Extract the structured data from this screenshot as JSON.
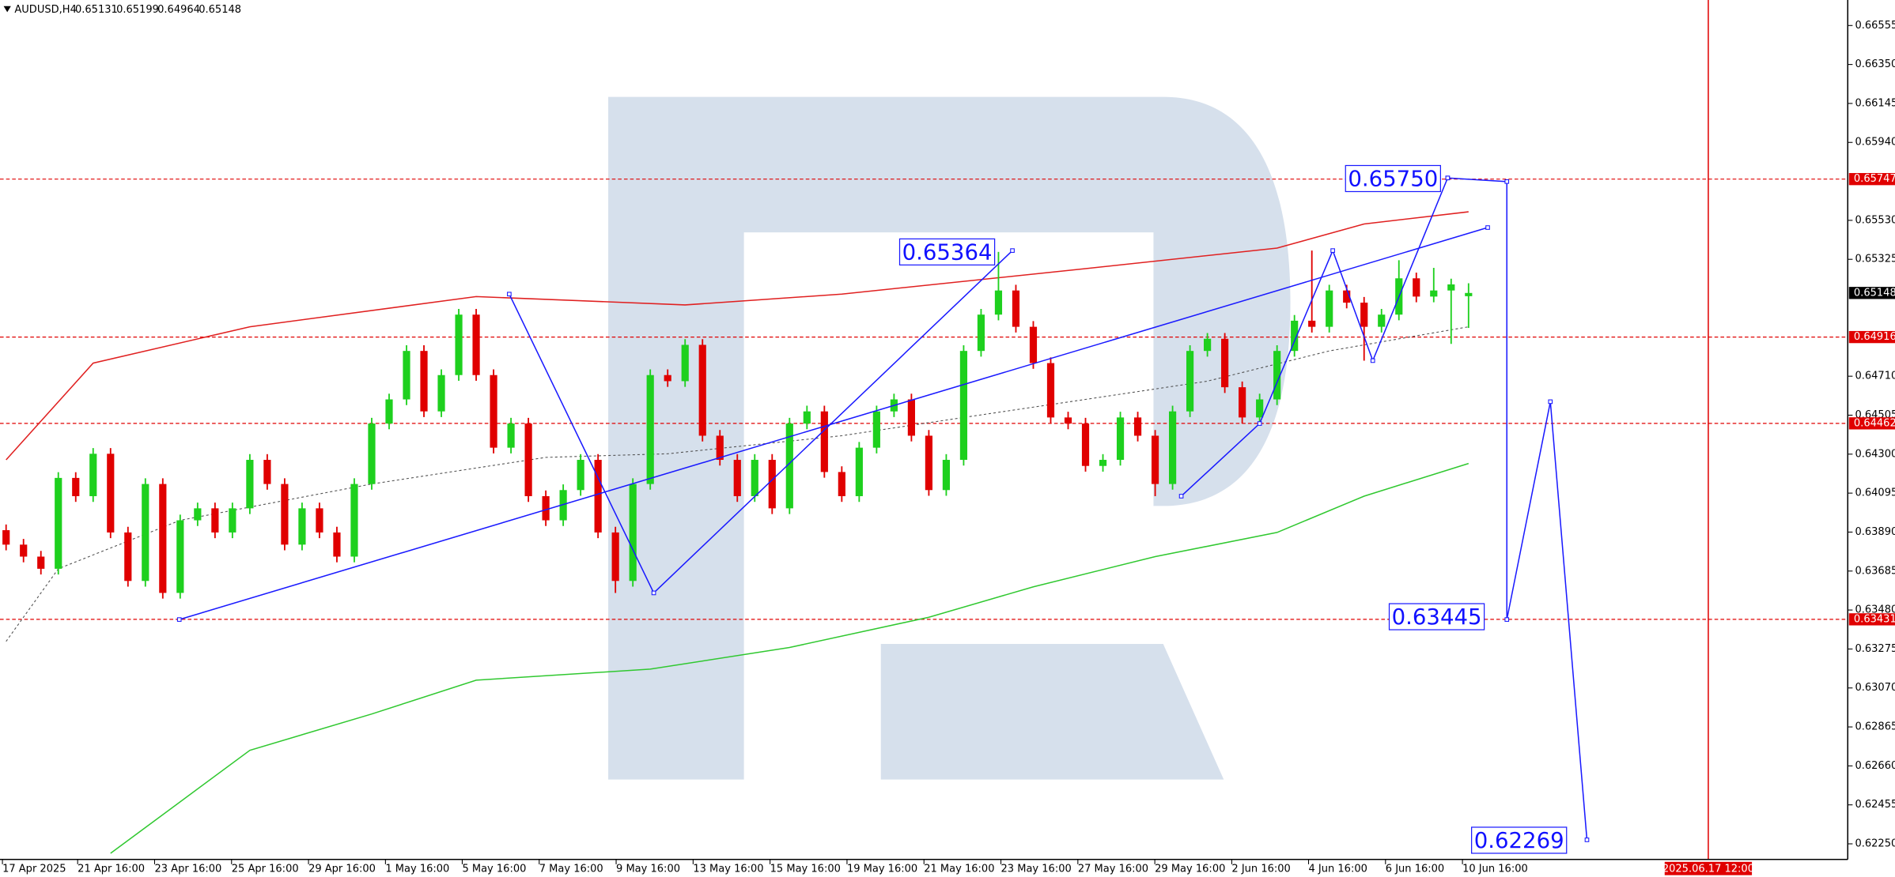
{
  "chart_data": {
    "type": "candlestick",
    "symbol": "AUDUSD,H4",
    "up_color": "#1ed01e",
    "down_color": "#e00000",
    "xlim": [
      -0.35,
      105.78
    ],
    "ylim": [
      0.62168,
      0.66689
    ],
    "yticks": [
      0.66555,
      {
        "value": 0.6635,
        "label": "0.66350"
      },
      0.66145,
      {
        "value": 0.6594,
        "label": "0.65940"
      },
      {
        "value": 0.6553,
        "label": "0.65530"
      },
      0.65325,
      {
        "value": 0.6471,
        "label": "0.64710"
      },
      0.64505,
      {
        "value": 0.643,
        "label": "0.64300"
      },
      0.64095,
      {
        "value": 0.6389,
        "label": "0.63890"
      },
      0.63685,
      {
        "value": 0.6348,
        "label": "0.63480"
      },
      0.63275,
      {
        "value": 0.6307,
        "label": "0.63070"
      },
      0.62865,
      {
        "value": 0.6266,
        "label": "0.62660"
      },
      0.62455,
      {
        "value": 0.6225,
        "label": "0.62250"
      }
    ],
    "xticks": [
      {
        "value": -0.21,
        "label": "17 Apr 2025"
      },
      {
        "value": 4.11,
        "label": "21 Apr 16:00"
      },
      {
        "value": 8.53,
        "label": "23 Apr 16:00"
      },
      {
        "value": 12.95,
        "label": "25 Apr 16:00"
      },
      {
        "value": 17.37,
        "label": "29 Apr 16:00"
      },
      {
        "value": 21.79,
        "label": "1 May 16:00"
      },
      {
        "value": 26.2,
        "label": "5 May 16:00"
      },
      {
        "value": 30.62,
        "label": "7 May 16:00"
      },
      {
        "value": 35.04,
        "label": "9 May 16:00"
      },
      {
        "value": 39.46,
        "label": "13 May 16:00"
      },
      {
        "value": 43.88,
        "label": "15 May 16:00"
      },
      {
        "value": 48.3,
        "label": "19 May 16:00"
      },
      {
        "value": 52.72,
        "label": "21 May 16:00"
      },
      {
        "value": 57.14,
        "label": "23 May 16:00"
      },
      {
        "value": 61.56,
        "label": "27 May 16:00"
      },
      {
        "value": 65.98,
        "label": "29 May 16:00"
      },
      {
        "value": 70.4,
        "label": "2 Jun 16:00"
      },
      {
        "value": 74.81,
        "label": "4 Jun 16:00"
      },
      {
        "value": 79.23,
        "label": "6 Jun 16:00"
      },
      {
        "value": 83.65,
        "label": "10 Jun 16:00"
      }
    ],
    "ohlc": [
      [
        0.639,
        0.6393,
        0.63794,
        0.63824
      ],
      [
        0.63824,
        0.63854,
        0.63731,
        0.63761
      ],
      [
        0.63761,
        0.63791,
        0.63667,
        0.63697
      ],
      [
        0.63697,
        0.64205,
        0.63667,
        0.64175
      ],
      [
        0.64175,
        0.64205,
        0.64049,
        0.64079
      ],
      [
        0.64079,
        0.64332,
        0.64049,
        0.64302
      ],
      [
        0.64302,
        0.64332,
        0.63858,
        0.63888
      ],
      [
        0.63888,
        0.63918,
        0.63603,
        0.63633
      ],
      [
        0.63633,
        0.64173,
        0.63603,
        0.64143
      ],
      [
        0.64143,
        0.64173,
        0.6354,
        0.6357
      ],
      [
        0.6357,
        0.63982,
        0.6354,
        0.63952
      ],
      [
        0.63952,
        0.64045,
        0.63922,
        0.64015
      ],
      [
        0.64015,
        0.64045,
        0.63858,
        0.63888
      ],
      [
        0.63888,
        0.64045,
        0.63858,
        0.64015
      ],
      [
        0.64015,
        0.643,
        0.63985,
        0.6427
      ],
      [
        0.6427,
        0.643,
        0.64113,
        0.64143
      ],
      [
        0.64143,
        0.64173,
        0.63794,
        0.63824
      ],
      [
        0.63824,
        0.64045,
        0.63794,
        0.64015
      ],
      [
        0.64015,
        0.64045,
        0.63858,
        0.63888
      ],
      [
        0.63888,
        0.63918,
        0.63731,
        0.63761
      ],
      [
        0.63761,
        0.64173,
        0.63731,
        0.64143
      ],
      [
        0.64143,
        0.64491,
        0.64113,
        0.64461
      ],
      [
        0.64461,
        0.64618,
        0.64431,
        0.64588
      ],
      [
        0.64588,
        0.64873,
        0.64558,
        0.64843
      ],
      [
        0.64843,
        0.64873,
        0.64495,
        0.64525
      ],
      [
        0.64525,
        0.64746,
        0.64495,
        0.64716
      ],
      [
        0.64716,
        0.65064,
        0.64686,
        0.65034
      ],
      [
        0.65034,
        0.65064,
        0.64686,
        0.64716
      ],
      [
        0.64716,
        0.64746,
        0.64304,
        0.64334
      ],
      [
        0.64334,
        0.64491,
        0.64304,
        0.64461
      ],
      [
        0.64461,
        0.64491,
        0.64049,
        0.64079
      ],
      [
        0.64079,
        0.64109,
        0.63922,
        0.63952
      ],
      [
        0.63952,
        0.64141,
        0.63922,
        0.64111
      ],
      [
        0.64111,
        0.643,
        0.64081,
        0.6427
      ],
      [
        0.6427,
        0.643,
        0.63858,
        0.63888
      ],
      [
        0.63888,
        0.63918,
        0.6357,
        0.63633
      ],
      [
        0.63633,
        0.64173,
        0.63603,
        0.64143
      ],
      [
        0.64143,
        0.64746,
        0.64113,
        0.64716
      ],
      [
        0.64716,
        0.64746,
        0.64654,
        0.64684
      ],
      [
        0.64684,
        0.64905,
        0.64654,
        0.64875
      ],
      [
        0.64875,
        0.64905,
        0.64367,
        0.64397
      ],
      [
        0.64397,
        0.64427,
        0.6424,
        0.6427
      ],
      [
        0.6427,
        0.643,
        0.64049,
        0.64079
      ],
      [
        0.64079,
        0.643,
        0.64049,
        0.6427
      ],
      [
        0.6427,
        0.643,
        0.63985,
        0.64015
      ],
      [
        0.64015,
        0.64491,
        0.63985,
        0.64461
      ],
      [
        0.64461,
        0.64555,
        0.64431,
        0.64525
      ],
      [
        0.64525,
        0.64555,
        0.64176,
        0.64206
      ],
      [
        0.64206,
        0.64236,
        0.64049,
        0.64079
      ],
      [
        0.64079,
        0.64364,
        0.64049,
        0.64334
      ],
      [
        0.64334,
        0.64555,
        0.64304,
        0.64525
      ],
      [
        0.64525,
        0.64618,
        0.64495,
        0.64588
      ],
      [
        0.64588,
        0.64618,
        0.64367,
        0.64397
      ],
      [
        0.64397,
        0.64427,
        0.64081,
        0.64111
      ],
      [
        0.64111,
        0.643,
        0.64081,
        0.6427
      ],
      [
        0.6427,
        0.64873,
        0.6424,
        0.64843
      ],
      [
        0.64843,
        0.65064,
        0.64813,
        0.65034
      ],
      [
        0.65034,
        0.65364,
        0.65004,
        0.65161
      ],
      [
        0.65161,
        0.65191,
        0.6494,
        0.6497
      ],
      [
        0.6497,
        0.65,
        0.64749,
        0.64779
      ],
      [
        0.64779,
        0.64809,
        0.64463,
        0.64493
      ],
      [
        0.64493,
        0.64523,
        0.64431,
        0.64461
      ],
      [
        0.64461,
        0.64491,
        0.64208,
        0.64238
      ],
      [
        0.64238,
        0.643,
        0.64208,
        0.6427
      ],
      [
        0.6427,
        0.64523,
        0.6424,
        0.64493
      ],
      [
        0.64493,
        0.64523,
        0.64367,
        0.64397
      ],
      [
        0.64397,
        0.64427,
        0.64079,
        0.64143
      ],
      [
        0.64143,
        0.64555,
        0.64113,
        0.64525
      ],
      [
        0.64525,
        0.64873,
        0.64495,
        0.64843
      ],
      [
        0.64843,
        0.64937,
        0.64813,
        0.64907
      ],
      [
        0.64907,
        0.64937,
        0.64622,
        0.64652
      ],
      [
        0.64652,
        0.64682,
        0.64461,
        0.64493
      ],
      [
        0.64493,
        0.64618,
        0.64463,
        0.64588
      ],
      [
        0.64588,
        0.64873,
        0.64558,
        0.64843
      ],
      [
        0.64843,
        0.65032,
        0.64813,
        0.65002
      ],
      [
        0.65002,
        0.65371,
        0.6494,
        0.6497
      ],
      [
        0.6497,
        0.65191,
        0.6494,
        0.65161
      ],
      [
        0.65161,
        0.65191,
        0.65067,
        0.65097
      ],
      [
        0.65097,
        0.65127,
        0.64792,
        0.6497
      ],
      [
        0.6497,
        0.65064,
        0.6494,
        0.65034
      ],
      [
        0.65034,
        0.6532,
        0.65004,
        0.65225
      ],
      [
        0.65225,
        0.65255,
        0.65099,
        0.65129
      ],
      [
        0.65129,
        0.6528,
        0.65099,
        0.65161
      ],
      [
        0.65161,
        0.65223,
        0.6488,
        0.65193
      ],
      [
        0.65131,
        0.65199,
        0.64964,
        0.65148
      ]
    ],
    "series": [
      {
        "color": "#e02020",
        "x": [
          0,
          5,
          14,
          27,
          39,
          48,
          62,
          73,
          78,
          84
        ],
        "values": [
          0.6427,
          0.64779,
          0.6497,
          0.65129,
          0.65085,
          0.65142,
          0.65276,
          0.65384,
          0.65511,
          0.65575
        ]
      },
      {
        "color": "#30c830",
        "x": [
          6,
          14,
          21,
          27,
          37,
          45,
          53,
          59,
          66,
          73,
          78,
          84
        ],
        "values": [
          0.622,
          0.62742,
          0.62933,
          0.63111,
          0.63169,
          0.63283,
          0.63442,
          0.63602,
          0.63761,
          0.63888,
          0.64079,
          0.64251
        ]
      },
      {
        "color": "#505050",
        "dash": true,
        "x": [
          0,
          3,
          10,
          21,
          31,
          38,
          48,
          55,
          62,
          69,
          76,
          84
        ],
        "values": [
          0.63315,
          0.63697,
          0.63952,
          0.64143,
          0.64283,
          0.64302,
          0.64397,
          0.64493,
          0.64588,
          0.64684,
          0.64843,
          0.6497
        ]
      }
    ],
    "trend_lines": [
      {
        "color": "#1a1aff",
        "x": [
          9.95,
          85.1
        ],
        "values": [
          0.6343,
          0.65492
        ]
      },
      {
        "color": "#1a1aff",
        "x": [
          28.9,
          37.2,
          57.8
        ],
        "values": [
          0.65142,
          0.6357,
          0.65371
        ]
      },
      {
        "color": "#1a1aff",
        "x": [
          67.5,
          72.0,
          76.2,
          78.5,
          82.8
        ],
        "values": [
          0.64079,
          0.64461,
          0.65371,
          0.64792,
          0.65753
        ]
      },
      {
        "color": "#1a1aff",
        "x": [
          82.8,
          86.2,
          86.2,
          88.7,
          90.8
        ],
        "values": [
          0.65753,
          0.65734,
          0.6343,
          0.64576,
          0.62271
        ]
      }
    ],
    "annotations": [
      {
        "x": 56.85,
        "value": 0.65364
      },
      {
        "x": 82.46,
        "value": 0.6575,
        "label": "0.65750"
      },
      {
        "x": 84.97,
        "value": 0.63445
      },
      {
        "x": 89.7,
        "value": 0.62269
      }
    ],
    "levels": [
      0.65747,
      0.64916,
      0.64462,
      0.63431
    ],
    "level_color": "#e00000",
    "event": {
      "x": 97.77,
      "label": "2025.06.17 12:00",
      "color": "#e00000"
    }
  }
}
